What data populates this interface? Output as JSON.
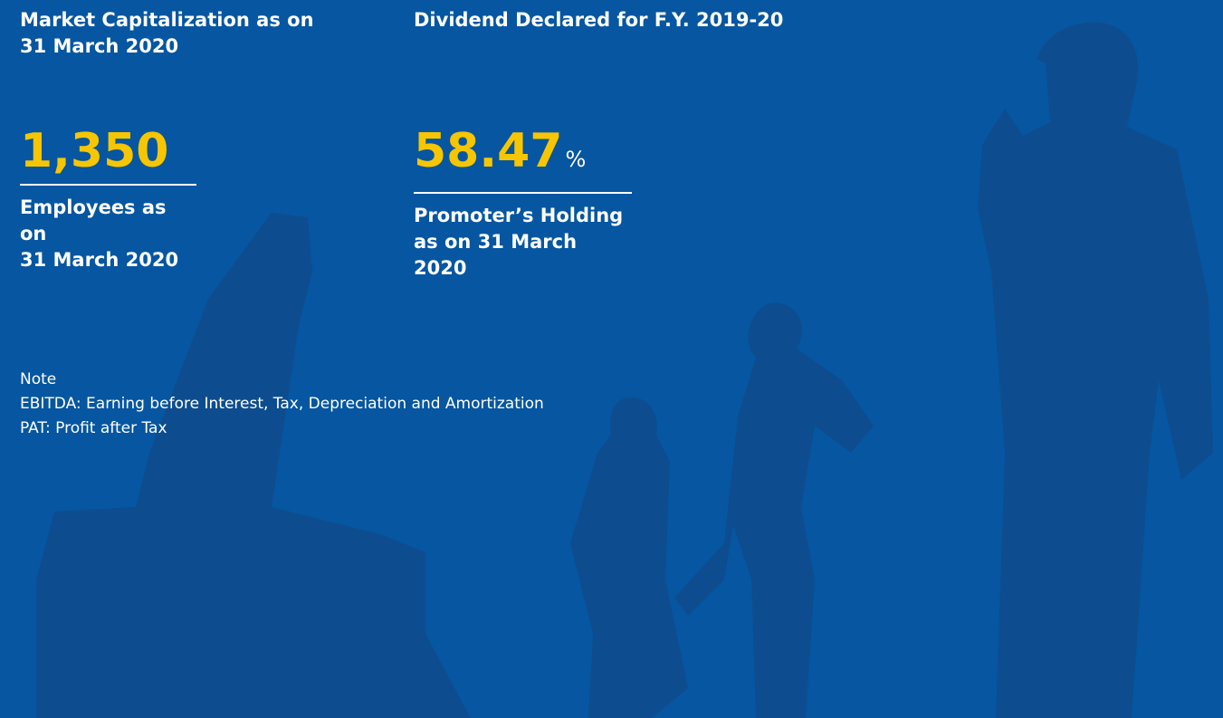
{
  "top_labels": [
    {
      "lines": [
        "Market Capitalization as on",
        "31 March 2020"
      ]
    },
    {
      "lines": [
        "Dividend Declared for F.Y.  2019-20"
      ]
    }
  ],
  "stats": [
    {
      "value": "1,350",
      "lines": [
        "Employees as on",
        "31 March 2020"
      ]
    },
    {
      "value": "58.47",
      "unit": "%",
      "lines": [
        "Promoter’s Holding",
        "as on 31 March 2020"
      ]
    }
  ],
  "note": {
    "title": "Note",
    "lines": [
      "EBITDA: Earning before Interest, Tax, Depreciation and Amortization",
      "PAT: Profit after Tax"
    ]
  }
}
